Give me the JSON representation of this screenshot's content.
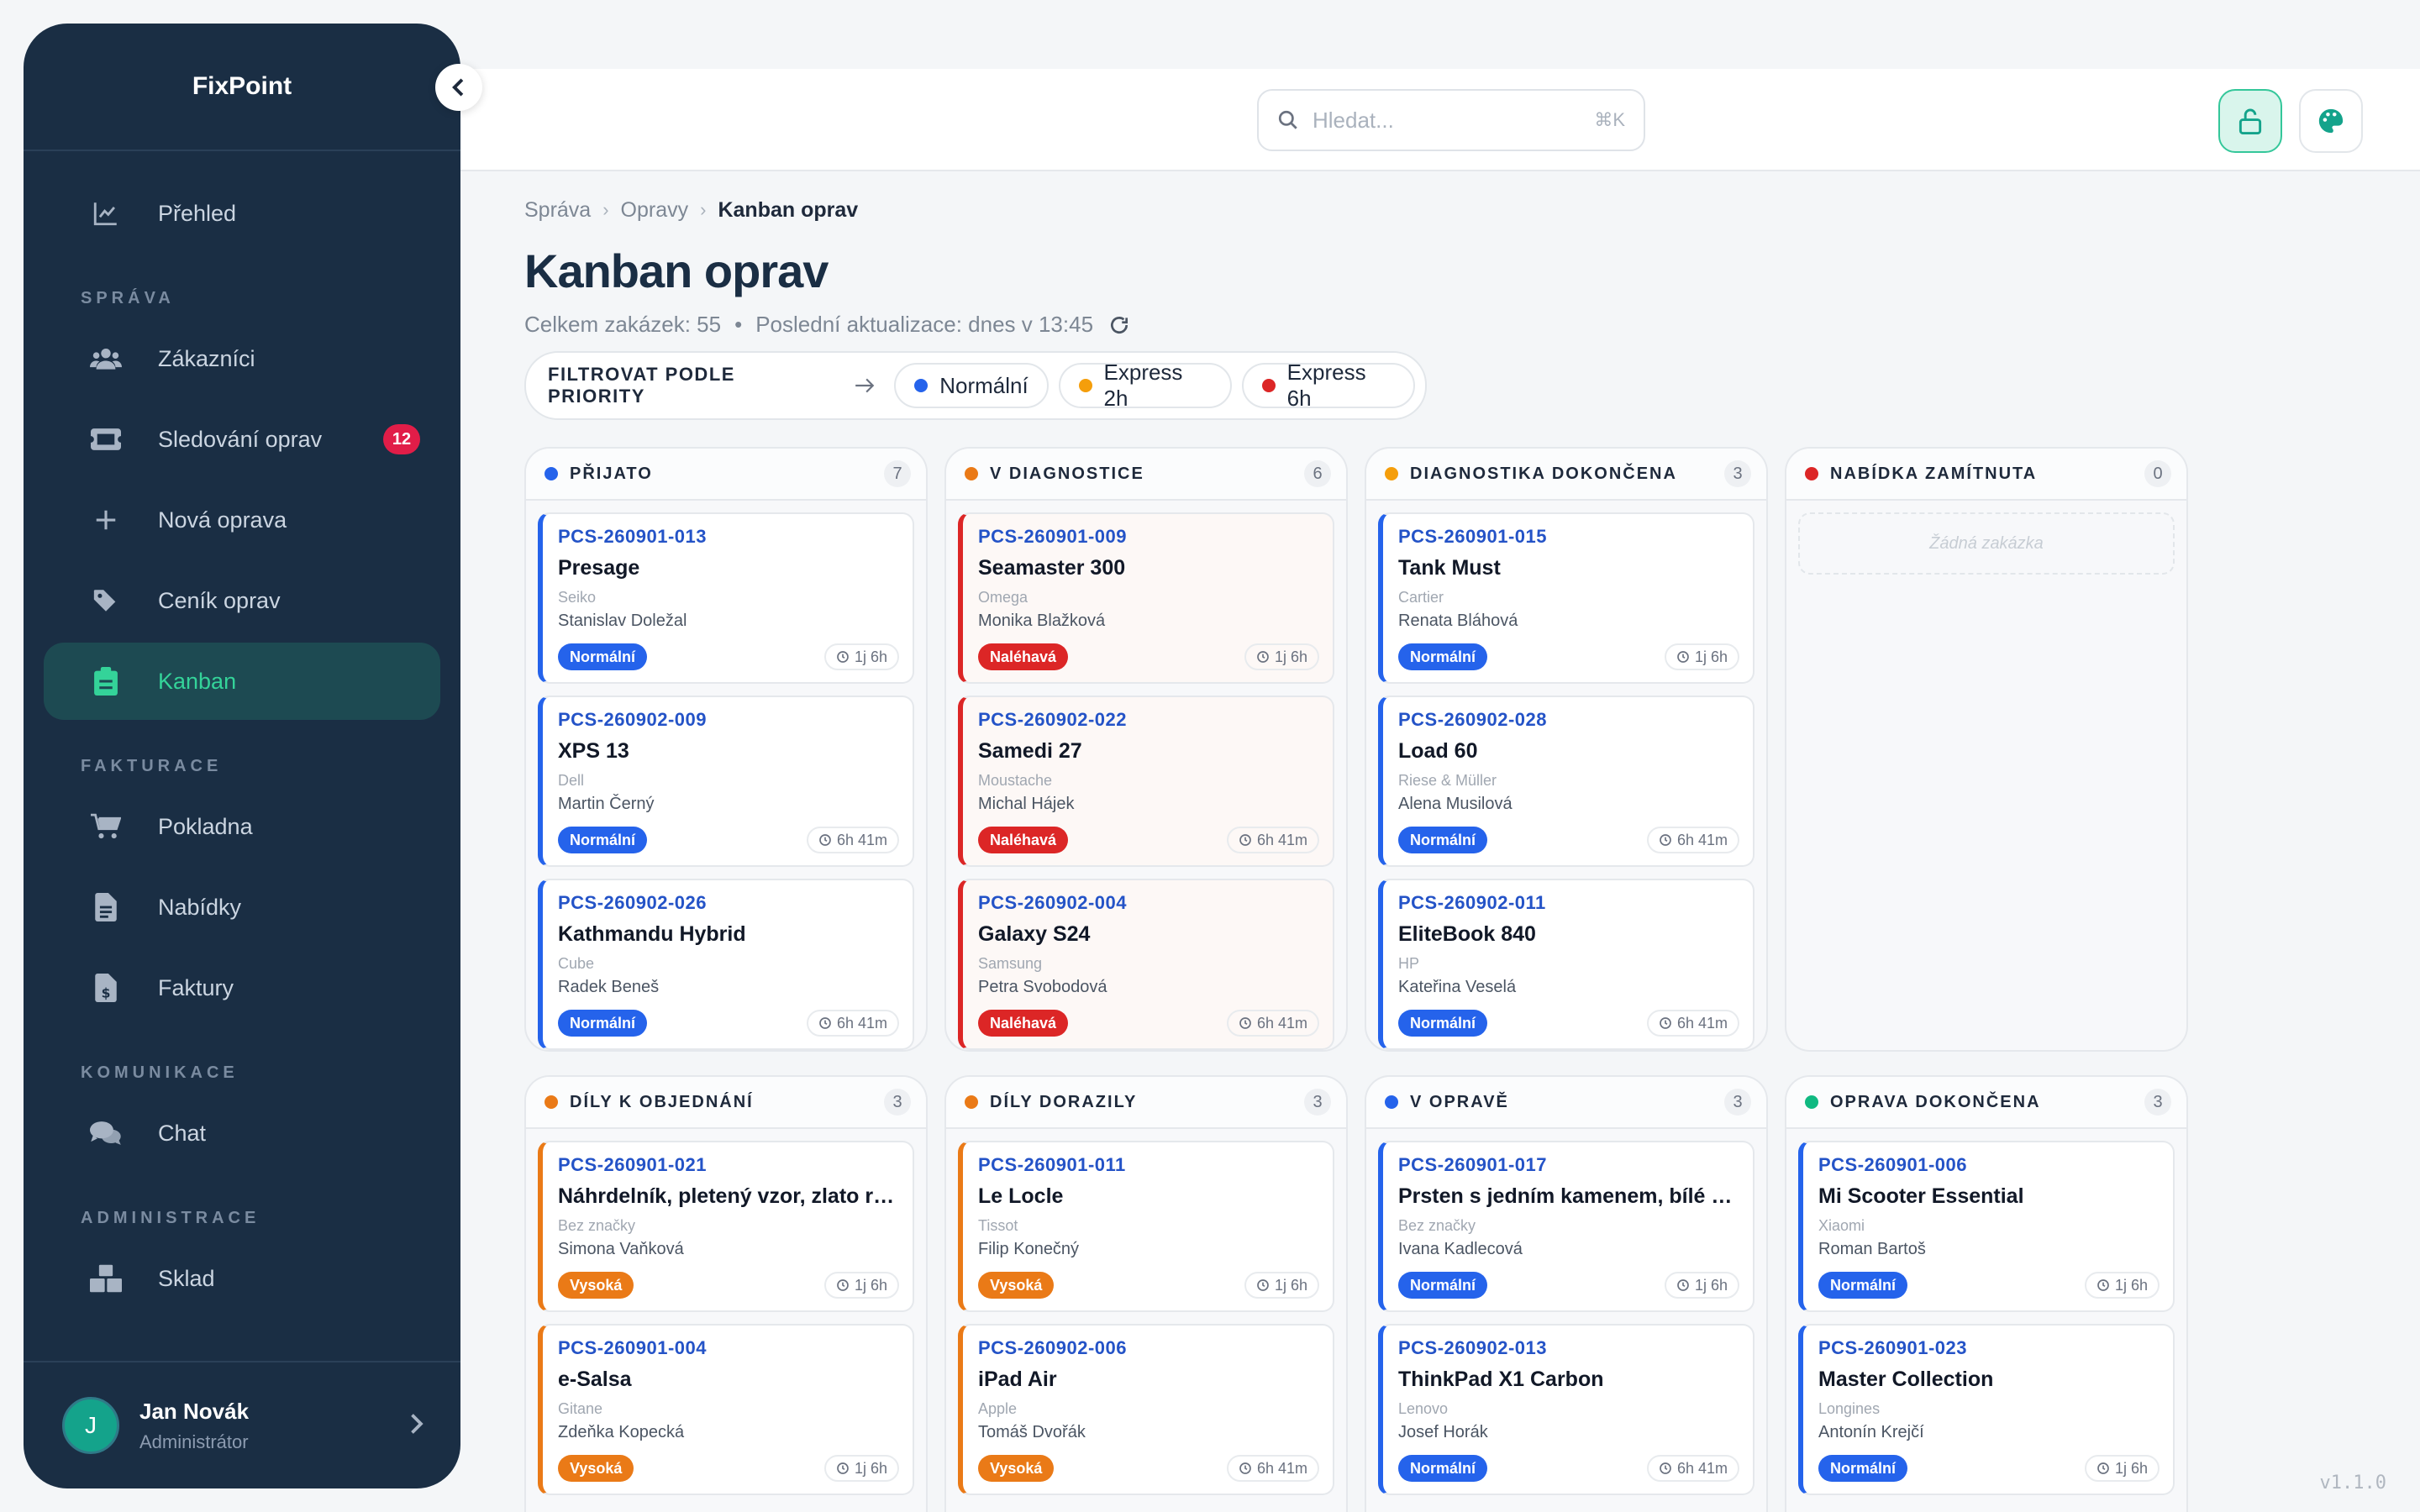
{
  "app": {
    "name": "FixPoint",
    "version": "v1.1.0"
  },
  "sidebar": {
    "top_items": [
      {
        "label": "Přehled",
        "icon": "chart-line-icon"
      }
    ],
    "sections": [
      {
        "label": "SPRÁVA",
        "items": [
          {
            "label": "Zákazníci",
            "icon": "users-icon"
          },
          {
            "label": "Sledování oprav",
            "icon": "ticket-icon",
            "badge": "12"
          },
          {
            "label": "Nová oprava",
            "icon": "plus-icon"
          },
          {
            "label": "Ceník oprav",
            "icon": "tags-icon"
          },
          {
            "label": "Kanban",
            "icon": "clipboard-icon",
            "active": true
          }
        ]
      },
      {
        "label": "FAKTURACE",
        "items": [
          {
            "label": "Pokladna",
            "icon": "cart-icon"
          },
          {
            "label": "Nabídky",
            "icon": "file-text-icon"
          },
          {
            "label": "Faktury",
            "icon": "invoice-icon"
          }
        ]
      },
      {
        "label": "KOMUNIKACE",
        "items": [
          {
            "label": "Chat",
            "icon": "chat-icon"
          }
        ]
      },
      {
        "label": "ADMINISTRACE",
        "items": [
          {
            "label": "Sklad",
            "icon": "boxes-icon"
          }
        ]
      }
    ],
    "user": {
      "initial": "J",
      "name": "Jan Novák",
      "role": "Administrátor"
    }
  },
  "topbar": {
    "search_placeholder": "Hledat...",
    "search_shortcut": "⌘K"
  },
  "breadcrumb": [
    "Správa",
    "Opravy",
    "Kanban oprav"
  ],
  "page": {
    "title": "Kanban oprav",
    "total": "Celkem zakázek: 55",
    "updated": "Poslední aktualizace: dnes v 13:45"
  },
  "filter": {
    "label": "FILTROVAT PODLE PRIORITY",
    "chips": [
      {
        "label": "Normální",
        "color": "#2563eb"
      },
      {
        "label": "Express 2h",
        "color": "#f59e0b"
      },
      {
        "label": "Express 6h",
        "color": "#dc2626"
      }
    ]
  },
  "priority_labels": {
    "normal": "Normální",
    "urgent": "Naléhavá",
    "high": "Vysoká"
  },
  "columns": [
    {
      "title": "PŘIJATO",
      "count": "7",
      "color": "#2563eb",
      "cards": [
        {
          "code": "PCS-260901-013",
          "title": "Presage",
          "brand": "Seiko",
          "customer": "Stanislav Doležal",
          "priority": "normal",
          "time": "1j 6h"
        },
        {
          "code": "PCS-260902-009",
          "title": "XPS 13",
          "brand": "Dell",
          "customer": "Martin Černý",
          "priority": "normal",
          "time": "6h 41m"
        },
        {
          "code": "PCS-260902-026",
          "title": "Kathmandu Hybrid",
          "brand": "Cube",
          "customer": "Radek Beneš",
          "priority": "normal",
          "time": "6h 41m"
        }
      ]
    },
    {
      "title": "V DIAGNOSTICE",
      "count": "6",
      "color": "#ea7a17",
      "cards": [
        {
          "code": "PCS-260901-009",
          "title": "Seamaster 300",
          "brand": "Omega",
          "customer": "Monika Blažková",
          "priority": "urgent",
          "time": "1j 6h"
        },
        {
          "code": "PCS-260902-022",
          "title": "Samedi 27",
          "brand": "Moustache",
          "customer": "Michal Hájek",
          "priority": "urgent",
          "time": "6h 41m"
        },
        {
          "code": "PCS-260902-004",
          "title": "Galaxy S24",
          "brand": "Samsung",
          "customer": "Petra Svobodová",
          "priority": "urgent",
          "time": "6h 41m"
        }
      ]
    },
    {
      "title": "DIAGNOSTIKA DOKONČENA",
      "count": "3",
      "color": "#f59e0b",
      "cards": [
        {
          "code": "PCS-260901-015",
          "title": "Tank Must",
          "brand": "Cartier",
          "customer": "Renata Bláhová",
          "priority": "normal",
          "time": "1j 6h"
        },
        {
          "code": "PCS-260902-028",
          "title": "Load 60",
          "brand": "Riese & Müller",
          "customer": "Alena Musilová",
          "priority": "normal",
          "time": "6h 41m"
        },
        {
          "code": "PCS-260902-011",
          "title": "EliteBook 840",
          "brand": "HP",
          "customer": "Kateřina Veselá",
          "priority": "normal",
          "time": "6h 41m"
        }
      ]
    },
    {
      "title": "NABÍDKA ZAMÍTNUTA",
      "count": "0",
      "color": "#dc2626",
      "empty": "Žádná zakázka",
      "cards": []
    },
    {
      "title": "DÍLY K OBJEDNÁNÍ",
      "count": "3",
      "color": "#ea7a17",
      "cards": [
        {
          "code": "PCS-260901-021",
          "title": "Náhrdelník, pletený vzor, zlato ry...",
          "brand": "Bez značky",
          "customer": "Simona Vaňková",
          "priority": "high",
          "time": "1j 6h"
        },
        {
          "code": "PCS-260901-004",
          "title": "e-Salsa",
          "brand": "Gitane",
          "customer": "Zdeňka Kopecká",
          "priority": "high",
          "time": "1j 6h"
        }
      ]
    },
    {
      "title": "DÍLY DORAZILY",
      "count": "3",
      "color": "#ea7a17",
      "cards": [
        {
          "code": "PCS-260901-011",
          "title": "Le Locle",
          "brand": "Tissot",
          "customer": "Filip Konečný",
          "priority": "high",
          "time": "1j 6h"
        },
        {
          "code": "PCS-260902-006",
          "title": "iPad Air",
          "brand": "Apple",
          "customer": "Tomáš Dvořák",
          "priority": "high",
          "time": "6h 41m"
        }
      ]
    },
    {
      "title": "V OPRAVĚ",
      "count": "3",
      "color": "#2563eb",
      "cards": [
        {
          "code": "PCS-260901-017",
          "title": "Prsten s jedním kamenem, bílé zl...",
          "brand": "Bez značky",
          "customer": "Ivana Kadlecová",
          "priority": "normal",
          "time": "1j 6h"
        },
        {
          "code": "PCS-260902-013",
          "title": "ThinkPad X1 Carbon",
          "brand": "Lenovo",
          "customer": "Josef Horák",
          "priority": "normal",
          "time": "6h 41m"
        }
      ]
    },
    {
      "title": "OPRAVA DOKONČENA",
      "count": "3",
      "color": "#10b981",
      "cards": [
        {
          "code": "PCS-260901-006",
          "title": "Mi Scooter Essential",
          "brand": "Xiaomi",
          "customer": "Roman Bartoš",
          "priority": "normal",
          "time": "1j 6h"
        },
        {
          "code": "PCS-260901-023",
          "title": "Master Collection",
          "brand": "Longines",
          "customer": "Antonín Krejčí",
          "priority": "normal",
          "time": "1j 6h"
        }
      ]
    }
  ]
}
